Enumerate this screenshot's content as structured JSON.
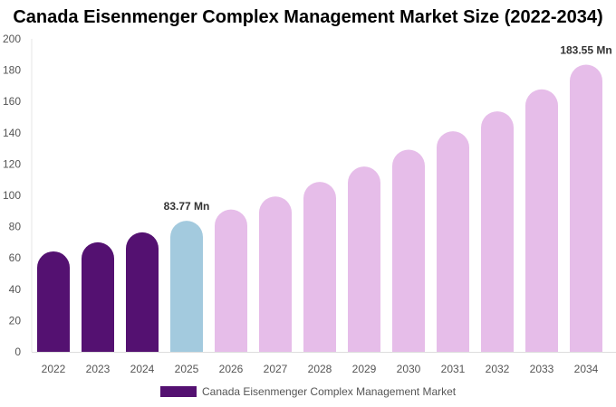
{
  "chart_data": {
    "type": "bar",
    "title": "Canada Eisenmenger Complex Management Market Size (2022-2034)",
    "categories": [
      "2022",
      "2023",
      "2024",
      "2025",
      "2026",
      "2027",
      "2028",
      "2029",
      "2030",
      "2031",
      "2032",
      "2033",
      "2034"
    ],
    "series": [
      {
        "name": "Canada Eisenmenger Complex Management Market",
        "values": [
          64.2,
          70.0,
          76.4,
          83.77,
          91.0,
          99.3,
          108.6,
          118.4,
          129.2,
          141.0,
          153.7,
          167.8,
          183.55
        ]
      }
    ],
    "bar_colors": [
      "#541171",
      "#541171",
      "#541171",
      "#a3cade",
      "#e6bde9",
      "#e6bde9",
      "#e6bde9",
      "#e6bde9",
      "#e6bde9",
      "#e6bde9",
      "#e6bde9",
      "#e6bde9",
      "#e6bde9"
    ],
    "legend_color": "#541171",
    "data_labels": [
      {
        "category": "2025",
        "text": "83.77 Mn"
      },
      {
        "category": "2034",
        "text": "183.55 Mn"
      }
    ],
    "ylim": [
      0,
      200
    ],
    "yticks": [
      0,
      20,
      40,
      60,
      80,
      100,
      120,
      140,
      160,
      180,
      200
    ],
    "xlabel": "",
    "ylabel": "",
    "grid": false,
    "legend_position": "bottom"
  }
}
